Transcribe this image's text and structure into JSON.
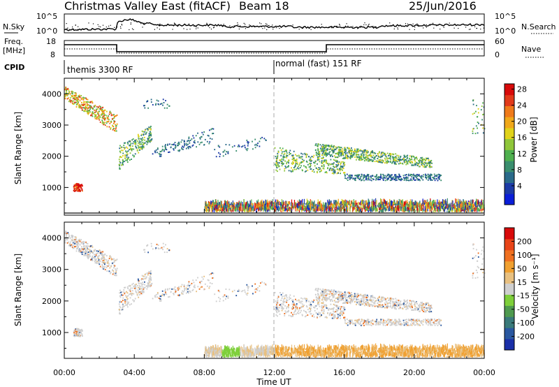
{
  "header": {
    "title": "Christmas Valley East (fitACF)",
    "beam": "Beam 18",
    "date": "25/Jun/2016"
  },
  "nsky_panel": {
    "left_label": "N.Sky",
    "left_ticks": [
      "10^5",
      "10^0"
    ],
    "right_label": "N.Search",
    "right_ticks": [
      "10^5",
      "10^0"
    ]
  },
  "freq_panel": {
    "left_label": [
      "Freq.",
      "[MHz]"
    ],
    "left_ticks": [
      "18",
      "8"
    ],
    "right_label": "Nave",
    "right_ticks": [
      "60",
      "0"
    ]
  },
  "cpid": {
    "label": "CPID",
    "segments": [
      {
        "name": "themis 3300 RF",
        "start_hour": 0
      },
      {
        "name": "normal (fast) 151 RF",
        "start_hour": 12
      }
    ]
  },
  "chart_data": [
    {
      "type": "heatmap",
      "panel": "power",
      "ylabel": "Slant Range [km]",
      "xlabel": "Time UT",
      "x_ticks": [
        "00:00",
        "04:00",
        "08:00",
        "12:00",
        "16:00",
        "20:00",
        "00:00"
      ],
      "y_ticks": [
        1000,
        2000,
        3000,
        4000
      ],
      "xlim_hours": [
        0,
        24
      ],
      "ylim_km": [
        180,
        4500
      ],
      "colorbar": {
        "label": "Power [dB]",
        "ticks": [
          4,
          8,
          12,
          16,
          20,
          24,
          28
        ],
        "colors": [
          "#0a1ed8",
          "#1c3aa6",
          "#2a6a8a",
          "#3a8e6e",
          "#4fb04f",
          "#8fc63a",
          "#e0d21a",
          "#f0a81a",
          "#ef7a1a",
          "#e23a1a",
          "#d80a0a"
        ]
      }
    },
    {
      "type": "heatmap",
      "panel": "velocity",
      "ylabel": "Slant Range [km]",
      "xlabel": "Time UT",
      "x_ticks": [
        "00:00",
        "04:00",
        "08:00",
        "12:00",
        "16:00",
        "20:00",
        "00:00"
      ],
      "y_ticks": [
        1000,
        2000,
        3000,
        4000
      ],
      "xlim_hours": [
        0,
        24
      ],
      "ylim_km": [
        180,
        4500
      ],
      "colorbar": {
        "label": "Velocity [m s⁻¹]",
        "ticks": [
          200,
          100,
          50,
          15,
          -15,
          -50,
          -100,
          -200
        ],
        "colors": [
          "#1a2fa8",
          "#2a58a0",
          "#3a7a7a",
          "#4f9a4f",
          "#7ecf3a",
          "#cfcfcf",
          "#e8c080",
          "#f0a030",
          "#ef7020",
          "#e84418",
          "#d80a0a"
        ]
      }
    }
  ],
  "colors": {
    "frame": "#000000",
    "ground_scatter_gray": "#c8c8c8",
    "dashed_line": "#aaaaaa"
  }
}
